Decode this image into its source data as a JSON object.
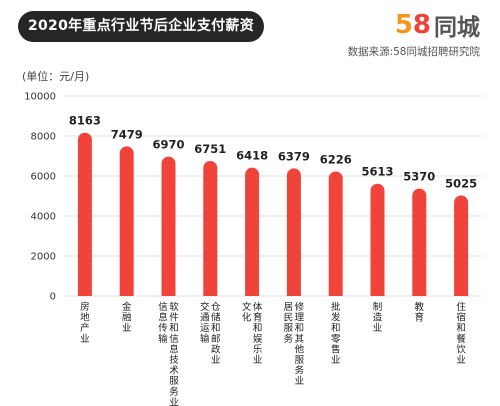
{
  "header": {
    "title": "2020年重点行业节后企业支付薪资",
    "brand_number": "58",
    "brand_name": "同城",
    "source": "数据来源:58同城招聘研究院"
  },
  "colors": {
    "bar": "#f0443a",
    "grid": "#e0e0e0",
    "pill": "#262626"
  },
  "chart_data": {
    "type": "bar",
    "title": "2020年重点行业节后企业支付薪资",
    "ylabel": "(单位：元/月)",
    "xlabel": "",
    "ylim": [
      0,
      10000
    ],
    "yticks": [
      0,
      2000,
      4000,
      6000,
      8000,
      10000
    ],
    "grid": true,
    "categories": [
      "房地产业",
      "金融业",
      "信息传输/软件和信息技术服务业",
      "交通运输/仓储和邮政业",
      "文化/体育和娱乐业",
      "居民服务/修理和其他服务业",
      "批发和零售业",
      "制造业",
      "教育",
      "住宿和餐饮业"
    ],
    "values": [
      8163,
      7479,
      6970,
      6751,
      6418,
      6379,
      6226,
      5613,
      5370,
      5025
    ]
  }
}
